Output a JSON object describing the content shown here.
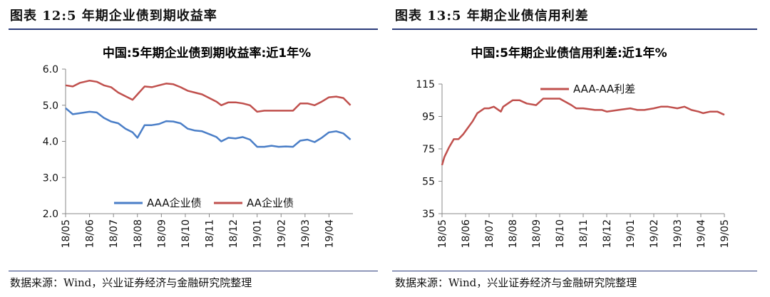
{
  "left_panel": {
    "heading": "图表 12:5 年期企业债到期收益率",
    "source": "数据来源：Wind，兴业证券经济与金融研究院整理"
  },
  "right_panel": {
    "heading": "图表 13:5 年期企业债信用利差",
    "source": "数据来源：Wind，兴业证券经济与金融研究院整理"
  },
  "colors": {
    "aaa": "#4a7ec7",
    "aa": "#c0504d",
    "rule": "#2b3b7a"
  },
  "chart_data": [
    {
      "type": "line",
      "title": "中国:5年期企业债到期收益率:近1年%",
      "xlabel": "",
      "ylabel": "",
      "x_ticks": [
        "18/05",
        "18/06",
        "18/07",
        "18/08",
        "18/09",
        "18/10",
        "18/11",
        "18/12",
        "19/01",
        "19/02",
        "19/03",
        "19/04"
      ],
      "y_ticks": [
        "2.0",
        "3.0",
        "4.0",
        "5.0",
        "6.0"
      ],
      "ylim": [
        2.0,
        6.0
      ],
      "xlim": [
        0,
        12.0
      ],
      "grid": false,
      "legend": "bottom",
      "series": [
        {
          "name": "AAA企业债",
          "color": "#4a7ec7",
          "x": [
            0,
            0.3,
            0.6,
            1.0,
            1.3,
            1.6,
            1.9,
            2.2,
            2.5,
            2.8,
            3.0,
            3.3,
            3.6,
            3.9,
            4.2,
            4.5,
            4.8,
            5.1,
            5.4,
            5.7,
            6.0,
            6.3,
            6.5,
            6.8,
            7.1,
            7.4,
            7.7,
            8.0,
            8.3,
            8.6,
            8.9,
            9.2,
            9.5,
            9.8,
            10.1,
            10.4,
            10.7,
            11.0,
            11.3,
            11.6,
            11.9
          ],
          "values": [
            4.92,
            4.75,
            4.78,
            4.82,
            4.8,
            4.65,
            4.55,
            4.5,
            4.35,
            4.25,
            4.1,
            4.45,
            4.45,
            4.48,
            4.56,
            4.55,
            4.5,
            4.35,
            4.3,
            4.28,
            4.2,
            4.12,
            4.0,
            4.1,
            4.08,
            4.12,
            4.05,
            3.85,
            3.85,
            3.88,
            3.85,
            3.86,
            3.85,
            4.02,
            4.05,
            3.98,
            4.1,
            4.25,
            4.28,
            4.22,
            4.05
          ]
        },
        {
          "name": "AA企业债",
          "color": "#c0504d",
          "x": [
            0,
            0.3,
            0.6,
            1.0,
            1.3,
            1.6,
            1.9,
            2.2,
            2.5,
            2.8,
            3.0,
            3.3,
            3.6,
            3.9,
            4.2,
            4.5,
            4.8,
            5.1,
            5.4,
            5.7,
            6.0,
            6.3,
            6.5,
            6.8,
            7.1,
            7.4,
            7.7,
            8.0,
            8.3,
            8.6,
            8.9,
            9.2,
            9.5,
            9.8,
            10.1,
            10.4,
            10.7,
            11.0,
            11.3,
            11.6,
            11.9
          ],
          "values": [
            5.55,
            5.52,
            5.62,
            5.68,
            5.65,
            5.55,
            5.5,
            5.35,
            5.25,
            5.15,
            5.3,
            5.52,
            5.5,
            5.55,
            5.6,
            5.58,
            5.5,
            5.4,
            5.35,
            5.3,
            5.2,
            5.1,
            5.0,
            5.08,
            5.08,
            5.05,
            5.0,
            4.82,
            4.85,
            4.85,
            4.85,
            4.85,
            4.85,
            5.05,
            5.05,
            5.0,
            5.1,
            5.22,
            5.24,
            5.2,
            5.0
          ]
        }
      ]
    },
    {
      "type": "line",
      "title": "中国:5年期企业债信用利差:近1年%",
      "xlabel": "",
      "ylabel": "",
      "x_ticks": [
        "18/05",
        "18/06",
        "18/07",
        "18/08",
        "18/09",
        "18/10",
        "18/11",
        "18/12",
        "19/01",
        "19/02",
        "19/03",
        "19/04",
        "19/05"
      ],
      "y_ticks": [
        "35",
        "55",
        "75",
        "95",
        "115"
      ],
      "ylim": [
        35,
        115
      ],
      "xlim": [
        0,
        12
      ],
      "grid": false,
      "legend": "top",
      "series": [
        {
          "name": "AAA-AA利差",
          "color": "#c0504d",
          "x": [
            0,
            0.1,
            0.3,
            0.5,
            0.7,
            0.9,
            1.1,
            1.3,
            1.5,
            1.6,
            1.8,
            2.0,
            2.2,
            2.5,
            2.6,
            2.8,
            3.0,
            3.3,
            3.6,
            4.0,
            4.3,
            4.6,
            5.0,
            5.5,
            5.7,
            6.0,
            6.5,
            6.8,
            7.0,
            7.5,
            8.0,
            8.3,
            8.6,
            9.0,
            9.3,
            9.6,
            10.0,
            10.3,
            10.6,
            10.9,
            11.1,
            11.4,
            11.7,
            12.0
          ],
          "values": [
            65,
            70,
            76,
            81,
            81,
            84,
            88,
            92,
            97,
            98,
            100,
            100,
            101,
            98,
            101,
            103,
            105,
            105,
            103,
            102,
            106,
            106,
            106,
            102,
            100,
            100,
            99,
            99,
            98,
            99,
            100,
            99,
            99,
            100,
            101,
            101,
            100,
            101,
            99,
            98,
            97,
            98,
            98,
            96
          ]
        }
      ]
    }
  ]
}
